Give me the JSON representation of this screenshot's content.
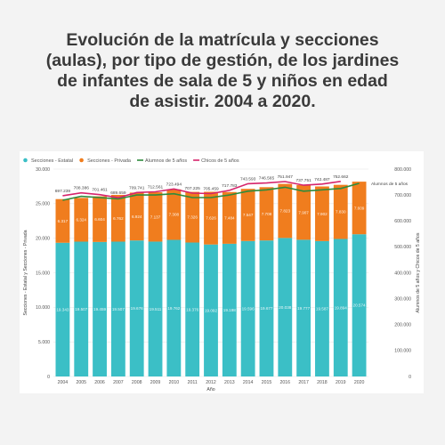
{
  "title": "Evolución de la matrícula y secciones\n(aulas), por tipo de gestión, de los jardines\nde infantes de sala de 5 y niños en edad\nde asistir. 2004 a 2020.",
  "chart_data": {
    "type": "bar",
    "stacked": true,
    "categories": [
      "2004",
      "2005",
      "2006",
      "2007",
      "2008",
      "2009",
      "2010",
      "2011",
      "2012",
      "2013",
      "2014",
      "2015",
      "2016",
      "2017",
      "2018",
      "2019",
      "2020"
    ],
    "series": [
      {
        "name": "Secciones - Estatal",
        "color": "#3bbfc6",
        "axis": "left",
        "values": [
          19343,
          19507,
          19459,
          19507,
          19676,
          19511,
          19762,
          19376,
          19092,
          19198,
          19596,
          19677,
          20038,
          19777,
          19587,
          19894,
          20574
        ],
        "labels": [
          "19.343",
          "19.507",
          "19.459",
          "19.507",
          "19.676",
          "19.511",
          "19.762",
          "19.376",
          "19.092",
          "19.198",
          "19.596",
          "19.677",
          "20.038",
          "19.777",
          "19.587",
          "19.894",
          "20.574"
        ]
      },
      {
        "name": "Secciones - Privada",
        "color": "#f07d1e",
        "axis": "left",
        "values": [
          6317,
          6324,
          6604,
          6762,
          6924,
          7137,
          7308,
          7326,
          7626,
          7484,
          7547,
          7708,
          7823,
          7907,
          7902,
          7830,
          7609
        ],
        "labels": [
          "6.317",
          "6.324",
          "6.604",
          "6.762",
          "6.924",
          "7.137",
          "7.308",
          "7.326",
          "7.626",
          "7.484",
          "7.547",
          "7.708",
          "7.823",
          "7.907",
          "7.902",
          "7.830",
          "7.609"
        ]
      },
      {
        "name": "Alumnos de 5 años",
        "color": "#2e8b3c",
        "axis": "right",
        "type": "line",
        "values": [
          680000,
          695000,
          690000,
          685000,
          700000,
          700000,
          705000,
          690000,
          690000,
          700000,
          715000,
          720000,
          730000,
          715000,
          720000,
          725000,
          745000
        ]
      },
      {
        "name": "Chicos de 5 años",
        "color": "#d6246b",
        "axis": "right",
        "type": "line",
        "values": [
          697239,
          708386,
          701461,
          689659,
          709741,
          712561,
          723494,
          707225,
          705459,
          717783,
          743593,
          746565,
          751947,
          737751,
          742487,
          752662,
          null
        ],
        "labels": [
          "697.239",
          "708.386",
          "701.461",
          "689.659",
          "709.741",
          "712.561",
          "723.494",
          "707.225",
          "705.459",
          "717.783",
          "743.593",
          "746.565",
          "751.947",
          "737.751",
          "742.487",
          "752.662",
          ""
        ]
      }
    ],
    "annotation": "Alumnos de 5 años",
    "xlabel": "Año",
    "ylabel": "Secciones - Estatal y Secciones - Privada",
    "y2label": "Alumnos de 5 años y Chicos de 5 años",
    "ylim": [
      0,
      30000
    ],
    "y2lim": [
      0,
      800000
    ],
    "yticks": [
      "0",
      "5.000",
      "10.000",
      "15.000",
      "20.000",
      "25.000",
      "30.000"
    ],
    "y2ticks": [
      "0",
      "100.000",
      "200.000",
      "300.000",
      "400.000",
      "500.000",
      "600.000",
      "700.000",
      "800.000"
    ],
    "legend": "top-left",
    "grid": true
  }
}
